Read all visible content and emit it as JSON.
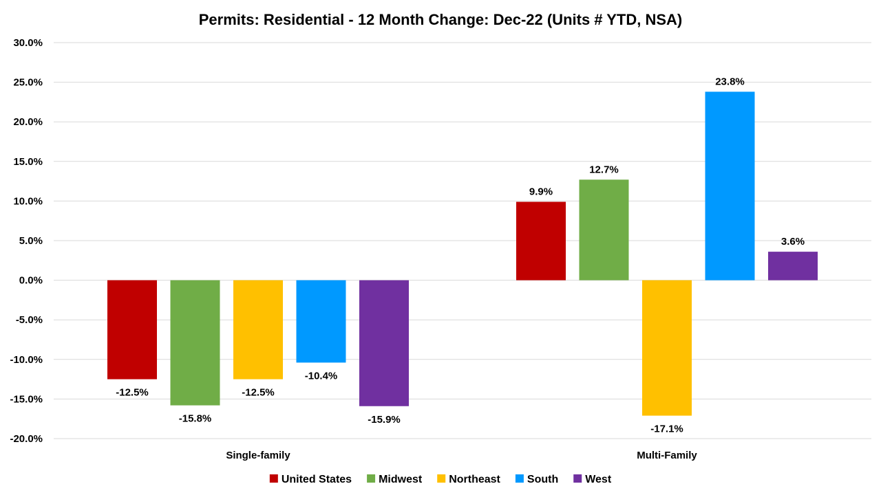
{
  "chart_data": {
    "type": "bar",
    "title": "Permits: Residential - 12 Month Change:  Dec-22 (Units # YTD, NSA)",
    "categories": [
      "Single-family",
      "Multi-Family"
    ],
    "series": [
      {
        "name": "United States",
        "color": "#C00000",
        "values": [
          -12.5,
          9.9
        ],
        "labels": [
          "-12.5%",
          "9.9%"
        ]
      },
      {
        "name": "Midwest",
        "color": "#70AD47",
        "values": [
          -15.8,
          12.7
        ],
        "labels": [
          "-15.8%",
          "12.7%"
        ]
      },
      {
        "name": "Northeast",
        "color": "#FFC000",
        "values": [
          -12.5,
          -17.1
        ],
        "labels": [
          "-12.5%",
          "-17.1%"
        ]
      },
      {
        "name": "South",
        "color": "#0099FF",
        "values": [
          -10.4,
          23.8
        ],
        "labels": [
          "-10.4%",
          "23.8%"
        ]
      },
      {
        "name": "West",
        "color": "#7030A0",
        "values": [
          -15.9,
          3.6
        ],
        "labels": [
          "-15.9%",
          "3.6%"
        ]
      }
    ],
    "ylim": [
      -20,
      30
    ],
    "yticks": [
      30,
      25,
      20,
      15,
      10,
      5,
      0,
      -5,
      -10,
      -15,
      -20
    ],
    "ytick_labels": [
      "30.0%",
      "25.0%",
      "20.0%",
      "15.0%",
      "10.0%",
      "5.0%",
      "0.0%",
      "-5.0%",
      "-10.0%",
      "-15.0%",
      "-20.0%"
    ],
    "grid": true,
    "legend_position": "bottom"
  }
}
